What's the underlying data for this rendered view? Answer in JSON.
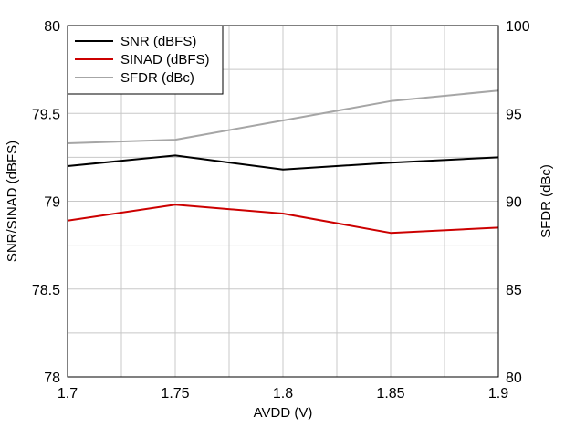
{
  "chart_data": {
    "type": "line",
    "title": "",
    "xlabel": "AVDD (V)",
    "ylabel_left": "SNR/SINAD (dBFS)",
    "ylabel_right": "SFDR (dBc)",
    "x": [
      1.7,
      1.75,
      1.8,
      1.85,
      1.9
    ],
    "x_ticks": [
      "1.7",
      "1.75",
      "1.8",
      "1.85",
      "1.9"
    ],
    "xlim": [
      1.7,
      1.9
    ],
    "ylim_left": [
      78,
      80
    ],
    "y_ticks_left": [
      "78",
      "78.5",
      "79",
      "79.5",
      "80"
    ],
    "ylim_right": [
      80,
      100
    ],
    "y_ticks_right": [
      "80",
      "85",
      "90",
      "95",
      "100"
    ],
    "grid": true,
    "legend_position": "top-left",
    "series": [
      {
        "name": "SNR (dBFS)",
        "axis": "left",
        "color": "#000000",
        "values": [
          79.2,
          79.26,
          79.18,
          79.22,
          79.25
        ]
      },
      {
        "name": "SINAD (dBFS)",
        "axis": "left",
        "color": "#cc0000",
        "values": [
          78.89,
          78.98,
          78.93,
          78.82,
          78.85
        ]
      },
      {
        "name": "SFDR (dBc)",
        "axis": "right",
        "color": "#a6a6a6",
        "values": [
          93.3,
          93.5,
          94.6,
          95.7,
          96.3
        ]
      }
    ]
  }
}
